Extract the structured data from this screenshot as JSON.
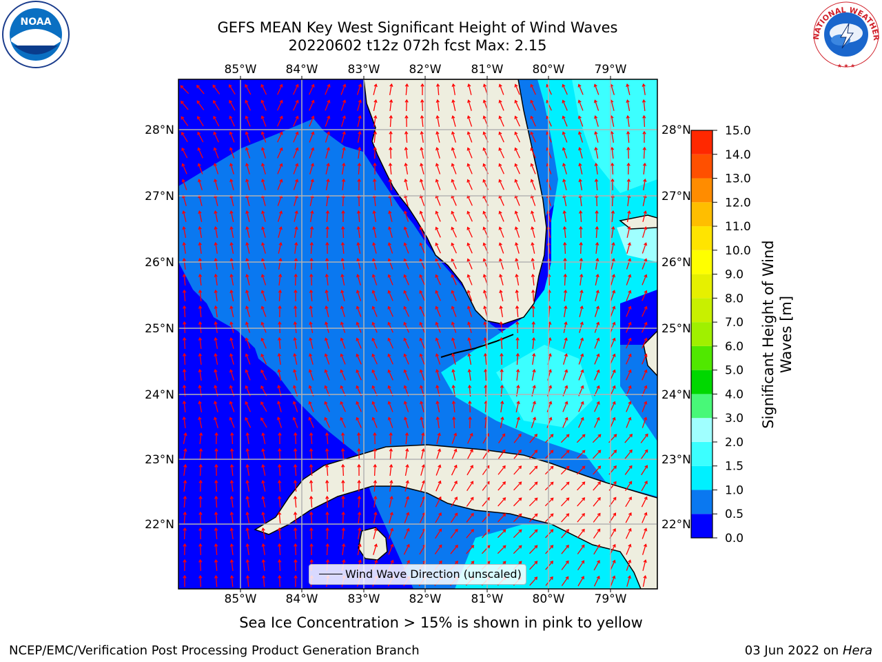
{
  "header": {
    "title_line1": "GEFS MEAN Key West Significant Height of Wind Waves",
    "title_line2": "20220602 t12z 072h fcst   Max: 2.15"
  },
  "logos": {
    "noaa_text": "NOAA",
    "nws_text": "NATIONAL WEATHER SERVICE"
  },
  "map": {
    "lon_ticks": [
      "85°W",
      "84°W",
      "83°W",
      "82°W",
      "81°W",
      "80°W",
      "79°W"
    ],
    "lat_ticks": [
      "28°N",
      "27°N",
      "26°N",
      "25°N",
      "24°N",
      "23°N",
      "22°N"
    ],
    "legend_label": "Wind Wave Direction (unscaled)",
    "colors": {
      "ocean_deep": "#0000ff",
      "ocean_mid": "#0a78f0",
      "cyan": "#00f0ff",
      "light_cyan": "#3cffff",
      "land": "#eeeedf",
      "arrow": "#ff0000",
      "grid": "#b3b3b3"
    }
  },
  "colorbar": {
    "label": "Significant Height of Wind Waves [m]",
    "ticks": [
      "15.0",
      "14.0",
      "13.0",
      "12.0",
      "11.0",
      "10.0",
      "9.0",
      "8.0",
      "7.0",
      "6.0",
      "5.0",
      "4.0",
      "3.0",
      "2.0",
      "1.5",
      "1.0",
      "0.5",
      "0.0"
    ],
    "colors": [
      "#0000ff",
      "#0a78f0",
      "#00f0ff",
      "#3cffff",
      "#a0ffff",
      "#48f878",
      "#00d800",
      "#50e800",
      "#a0f000",
      "#c8f000",
      "#e6f000",
      "#ffff00",
      "#ffe400",
      "#ffbe00",
      "#ff8c00",
      "#ff5000",
      "#ff2800",
      "#ff0000"
    ]
  },
  "footer": {
    "sea_ice_note": "Sea Ice Concentration > 15% is shown in pink to yellow",
    "org_credit": "NCEP/EMC/Verification Post Processing Product Generation Branch",
    "run_date": "03 Jun 2022 on",
    "host": "Hera"
  }
}
